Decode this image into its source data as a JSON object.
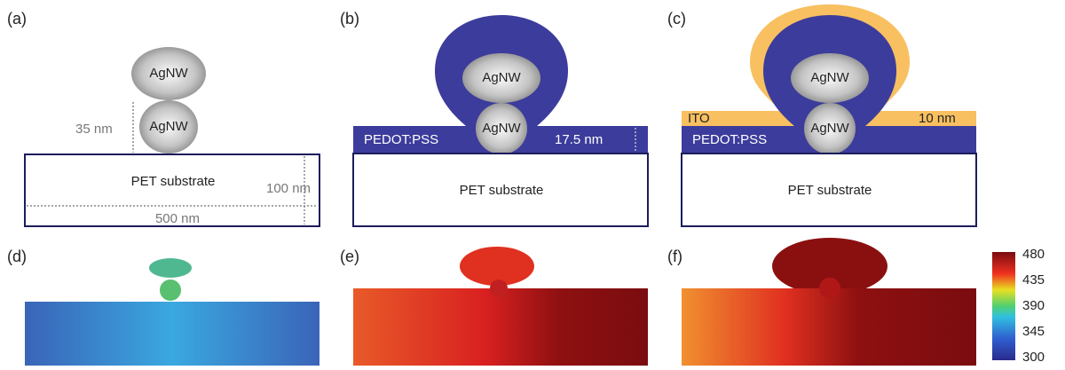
{
  "panels": [
    {
      "label": "(a)",
      "wire_top": "AgNW",
      "wire_bottom": "AgNW",
      "height_gap": "35 nm",
      "substrate": "PET substrate",
      "thickness": "100 nm",
      "width": "500 nm"
    },
    {
      "label": "(b)",
      "wire_top": "AgNW",
      "wire_bottom": "AgNW",
      "layer": "PEDOT:PSS",
      "layer_thickness": "17.5 nm",
      "substrate": "PET substrate"
    },
    {
      "label": "(c)",
      "wire_top": "AgNW",
      "wire_bottom": "AgNW",
      "top_layer": "ITO",
      "top_thickness": "10 nm",
      "layer": "PEDOT:PSS",
      "substrate": "PET substrate"
    },
    {
      "label": "(d)"
    },
    {
      "label": "(e)"
    },
    {
      "label": "(f)"
    }
  ],
  "colorbar": {
    "ticks": [
      480,
      435,
      390,
      345,
      300
    ]
  }
}
